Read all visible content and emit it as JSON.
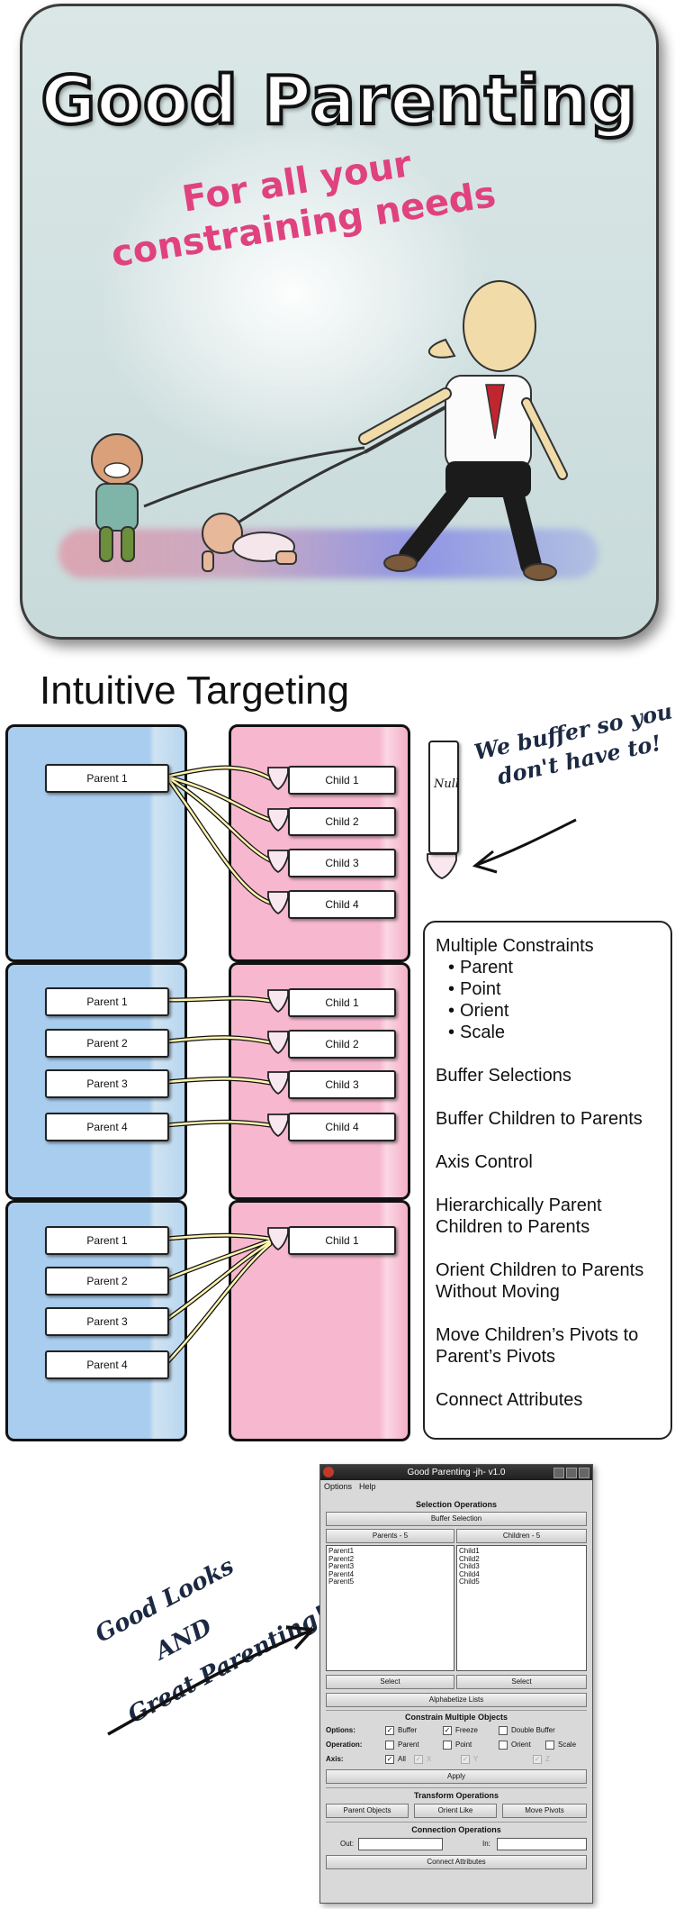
{
  "banner": {
    "title": "Good Parenting",
    "tagline_line1": "For all your",
    "tagline_line2": "constraining needs"
  },
  "targeting": {
    "heading": "Intuitive Targeting",
    "null_label": "Null",
    "buffer_callout_line1": "We buffer so you",
    "buffer_callout_line2": "don't have to!",
    "groups": [
      {
        "parents": [
          "Parent 1"
        ],
        "children": [
          "Child 1",
          "Child 2",
          "Child 3",
          "Child 4"
        ]
      },
      {
        "parents": [
          "Parent 1",
          "Parent 2",
          "Parent 3",
          "Parent 4"
        ],
        "children": [
          "Child 1",
          "Child 2",
          "Child 3",
          "Child 4"
        ]
      },
      {
        "parents": [
          "Parent 1",
          "Parent 2",
          "Parent 3",
          "Parent 4"
        ],
        "children": [
          "Child 1"
        ]
      }
    ]
  },
  "features": {
    "constraints_title": "Multiple Constraints",
    "constraint_types": [
      "Parent",
      "Point",
      "Orient",
      "Scale"
    ],
    "items": [
      "Buffer Selections",
      "Buffer Children to Parents",
      "Axis Control",
      "Hierarchically Parent",
      "Children to Parents",
      "Orient Children to Parents",
      "Without Moving",
      "Move Children’s Pivots to",
      "Parent’s Pivots",
      "Connect Attributes"
    ]
  },
  "promo": {
    "line1": "Good Looks",
    "line2": "AND",
    "line3": "Great Parenting!"
  },
  "window": {
    "title": "Good Parenting -jh- v1.0",
    "menu": [
      "Options",
      "Help"
    ],
    "selection_ops_header": "Selection Operations",
    "buffer_selection": "Buffer Selection",
    "parents_header": "Parents - 5",
    "children_header": "Children - 5",
    "parents": [
      "Parent1",
      "Parent2",
      "Parent3",
      "Parent4",
      "Parent5"
    ],
    "children": [
      "Child1",
      "Child2",
      "Child3",
      "Child4",
      "Child5"
    ],
    "select_left": "Select",
    "select_right": "Select",
    "alphabetize": "Alphabetize Lists",
    "constrain_header": "Constrain Multiple Objects",
    "options_label": "Options:",
    "opt_buffer": "Buffer",
    "opt_freeze": "Freeze",
    "opt_double": "Double Buffer",
    "operation_label": "Operation:",
    "op_parent": "Parent",
    "op_point": "Point",
    "op_orient": "Orient",
    "op_scale": "Scale",
    "axis_label": "Axis:",
    "axis_all": "All",
    "axis_x": "X",
    "axis_y": "Y",
    "axis_z": "Z",
    "apply": "Apply",
    "transform_header": "Transform Operations",
    "parent_objects": "Parent Objects",
    "orient_like": "Orient Like",
    "move_pivots": "Move Pivots",
    "connection_header": "Connection Operations",
    "out_label": "Out:",
    "in_label": "In:",
    "connect_attributes": "Connect Attributes"
  }
}
